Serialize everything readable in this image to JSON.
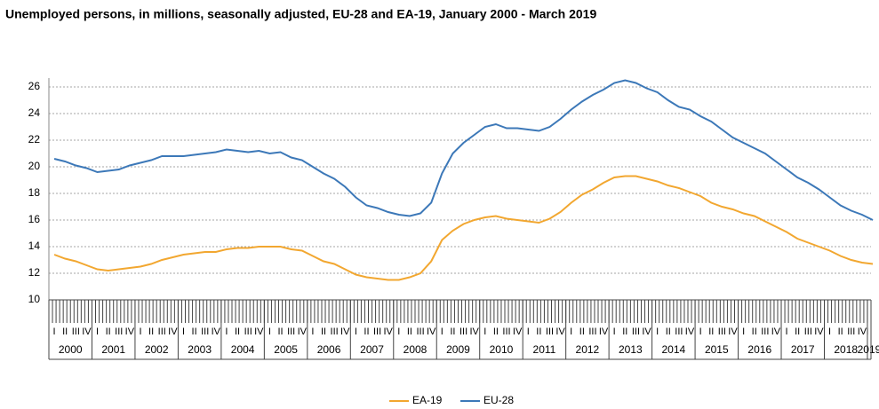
{
  "chart_data": {
    "type": "line",
    "title": "Unemployed persons, in millions,  seasonally adjusted, EU-28 and EA-19,  January 2000 - March 2019",
    "categories": [
      "I",
      "II",
      "III",
      "IV",
      "I",
      "II",
      "III",
      "IV",
      "I",
      "II",
      "III",
      "IV",
      "I",
      "II",
      "III",
      "IV",
      "I",
      "II",
      "III",
      "IV",
      "I",
      "II",
      "III",
      "IV",
      "I",
      "II",
      "III",
      "IV",
      "I",
      "II",
      "III",
      "IV",
      "I",
      "II",
      "III",
      "IV",
      "I",
      "II",
      "III",
      "IV",
      "I",
      "II",
      "III",
      "IV",
      "I",
      "II",
      "III",
      "IV",
      "I",
      "II",
      "III",
      "IV",
      "I",
      "II",
      "III",
      "IV",
      "I",
      "II",
      "III",
      "IV",
      "I",
      "II",
      "III",
      "IV",
      "I",
      "II",
      "III",
      "IV",
      "I",
      "II",
      "III",
      "IV",
      "I",
      "II",
      "III",
      "IV",
      "I"
    ],
    "years": [
      "2000",
      "2001",
      "2002",
      "2003",
      "2004",
      "2005",
      "2006",
      "2007",
      "2008",
      "2009",
      "2010",
      "2011",
      "2012",
      "2013",
      "2014",
      "2015",
      "2016",
      "2017",
      "2018",
      "2019"
    ],
    "series": [
      {
        "name": "EA-19",
        "color": "#f2a730",
        "values": [
          13.4,
          13.1,
          12.9,
          12.6,
          12.3,
          12.2,
          12.3,
          12.4,
          12.5,
          12.7,
          13.0,
          13.2,
          13.4,
          13.5,
          13.6,
          13.6,
          13.8,
          13.9,
          13.9,
          14.0,
          14.0,
          14.0,
          13.8,
          13.7,
          13.3,
          12.9,
          12.7,
          12.3,
          11.9,
          11.7,
          11.6,
          11.5,
          11.5,
          11.7,
          12.0,
          12.9,
          14.5,
          15.2,
          15.7,
          16.0,
          16.2,
          16.3,
          16.1,
          16.0,
          15.9,
          15.8,
          16.1,
          16.6,
          17.3,
          17.9,
          18.3,
          18.8,
          19.2,
          19.3,
          19.3,
          19.1,
          18.9,
          18.6,
          18.4,
          18.1,
          17.8,
          17.3,
          17.0,
          16.8,
          16.5,
          16.3,
          15.9,
          15.5,
          15.1,
          14.6,
          14.3,
          14.0,
          13.7,
          13.3,
          13.0,
          12.8,
          12.7
        ]
      },
      {
        "name": "EU-28",
        "color": "#3c78b8",
        "values": [
          20.6,
          20.4,
          20.1,
          19.9,
          19.6,
          19.7,
          19.8,
          20.1,
          20.3,
          20.5,
          20.8,
          20.8,
          20.8,
          20.9,
          21.0,
          21.1,
          21.3,
          21.2,
          21.1,
          21.2,
          21.0,
          21.1,
          20.7,
          20.5,
          20.0,
          19.5,
          19.1,
          18.5,
          17.7,
          17.1,
          16.9,
          16.6,
          16.4,
          16.3,
          16.5,
          17.3,
          19.5,
          21.0,
          21.8,
          22.4,
          23.0,
          23.2,
          22.9,
          22.9,
          22.8,
          22.7,
          23.0,
          23.6,
          24.3,
          24.9,
          25.4,
          25.8,
          26.3,
          26.5,
          26.3,
          25.9,
          25.6,
          25.0,
          24.5,
          24.3,
          23.8,
          23.4,
          22.8,
          22.2,
          21.8,
          21.4,
          21.0,
          20.4,
          19.8,
          19.2,
          18.8,
          18.3,
          17.7,
          17.1,
          16.7,
          16.4,
          16.0
        ]
      }
    ],
    "ylim": [
      10,
      26
    ],
    "yticks": [
      10,
      12,
      14,
      16,
      18,
      20,
      22,
      24,
      26
    ],
    "grid": true
  }
}
